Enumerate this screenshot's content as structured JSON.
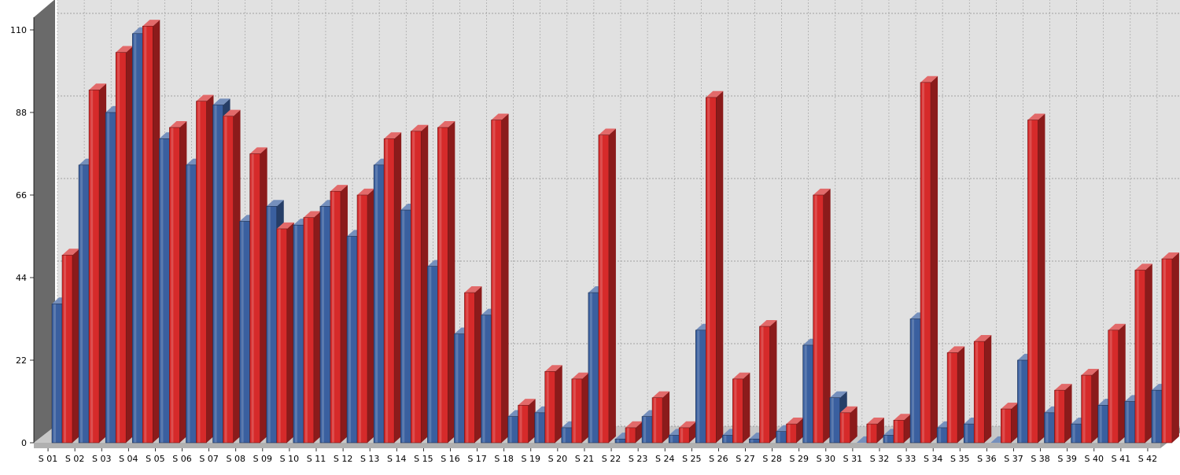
{
  "chart_data": {
    "type": "bar",
    "title": "",
    "xlabel": "",
    "ylabel": "",
    "ylim": [
      0,
      110
    ],
    "yticks": [
      0,
      22,
      44,
      66,
      88,
      110
    ],
    "grid": true,
    "legend": "none",
    "categories": [
      "S 01",
      "S 02",
      "S 03",
      "S 04",
      "S 05",
      "S 06",
      "S 07",
      "S 08",
      "S 09",
      "S 10",
      "S 11",
      "S 12",
      "S 13",
      "S 14",
      "S 15",
      "S 16",
      "S 17",
      "S 18",
      "S 19",
      "S 20",
      "S 21",
      "S 22",
      "S 23",
      "S 24",
      "S 25",
      "S 26",
      "S 27",
      "S 28",
      "S 29",
      "S 30",
      "S 31",
      "S 32",
      "S 33",
      "S 34",
      "S 35",
      "S 36",
      "S 37",
      "S 38",
      "S 39",
      "S 40",
      "S 41",
      "S 42"
    ],
    "series": [
      {
        "color": "#3a5f9f",
        "values": [
          37,
          74,
          88,
          109,
          81,
          74,
          90,
          59,
          63,
          58,
          63,
          55,
          74,
          62,
          47,
          29,
          34,
          7,
          8,
          4,
          40,
          1,
          7,
          2,
          30,
          2,
          1,
          3,
          26,
          12,
          0,
          2,
          33,
          4,
          5,
          0,
          22,
          8,
          5,
          10,
          11,
          14
        ]
      },
      {
        "color": "#d62a2a",
        "values": [
          50,
          94,
          104,
          111,
          84,
          91,
          87,
          77,
          57,
          60,
          67,
          66,
          81,
          83,
          84,
          40,
          86,
          10,
          19,
          17,
          82,
          4,
          12,
          4,
          92,
          17,
          31,
          5,
          66,
          8,
          5,
          6,
          96,
          24,
          27,
          9,
          86,
          14,
          18,
          30,
          46,
          49
        ]
      }
    ]
  }
}
